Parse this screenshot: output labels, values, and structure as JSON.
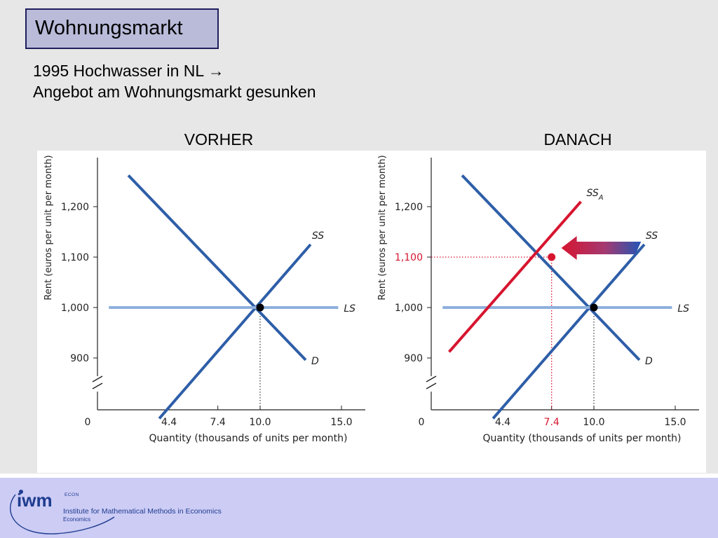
{
  "slide": {
    "title": "Wohnungsmarkt",
    "subtitle_line1": "1995 Hochwasser in NL →",
    "subtitle_line2": "Angebot am Wohnungsmarkt gesunken",
    "panel_before": "VORHER",
    "panel_after": "DANACH"
  },
  "footer": {
    "logo_mark": "iwm",
    "logo_econ": "ECON",
    "institute": "Institute for Mathematical Methods in Economics",
    "department": "Economics"
  },
  "colors": {
    "demand_supply_blue": "#2e5ea8",
    "long_run_supply": "#8fb0dc",
    "shifted_supply_red": "#d7152f",
    "highlight_red": "#d7152f"
  },
  "chart_data": [
    {
      "type": "line",
      "panel": "VORHER",
      "xlabel": "Quantity (thousands of units per month)",
      "ylabel": "Rent (euros per unit per month)",
      "x_ticks": [
        "0",
        "4.4",
        "7.4",
        "10.0",
        "15.0"
      ],
      "y_ticks": [
        "900",
        "1,000",
        "1,100",
        "1,200"
      ],
      "xlim": [
        0,
        16.5
      ],
      "ylim": [
        820,
        1290
      ],
      "y_axis_break": true,
      "series": [
        {
          "name": "D",
          "x": [
            1.9,
            12.8
          ],
          "y": [
            1262,
            896
          ]
        },
        {
          "name": "SS",
          "x": [
            3.8,
            13.1
          ],
          "y": [
            780,
            1125
          ]
        },
        {
          "name": "LS",
          "x": [
            0.7,
            14.8
          ],
          "y": [
            1000,
            1000
          ]
        }
      ],
      "equilibrium": {
        "x": 10.0,
        "y": 1000
      },
      "annotations": []
    },
    {
      "type": "line",
      "panel": "DANACH",
      "xlabel": "Quantity (thousands of units per month)",
      "ylabel": "Rent (euros per unit per month)",
      "x_ticks": [
        "0",
        "4.4",
        "7.4",
        "10.0",
        "15.0"
      ],
      "y_ticks": [
        "900",
        "1,000",
        "1,100",
        "1,200"
      ],
      "highlight_x_tick": "7.4",
      "highlight_y_tick": "1,100",
      "xlim": [
        0,
        16.5
      ],
      "ylim": [
        820,
        1290
      ],
      "y_axis_break": true,
      "series": [
        {
          "name": "D",
          "x": [
            1.9,
            12.8
          ],
          "y": [
            1262,
            896
          ]
        },
        {
          "name": "SS",
          "x": [
            3.8,
            13.1
          ],
          "y": [
            780,
            1125
          ]
        },
        {
          "name": "LS",
          "x": [
            0.7,
            14.8
          ],
          "y": [
            1000,
            1000
          ]
        },
        {
          "name": "SS",
          "name_subscript": "A",
          "x": [
            1.1,
            9.2
          ],
          "y": [
            912,
            1210
          ]
        }
      ],
      "equilibrium": {
        "x": 10.0,
        "y": 1000
      },
      "new_equilibrium": {
        "x": 7.4,
        "y": 1100
      },
      "shift_arrow": {
        "from_x": 12.9,
        "to_x": 8.0,
        "y": 1118
      }
    }
  ]
}
